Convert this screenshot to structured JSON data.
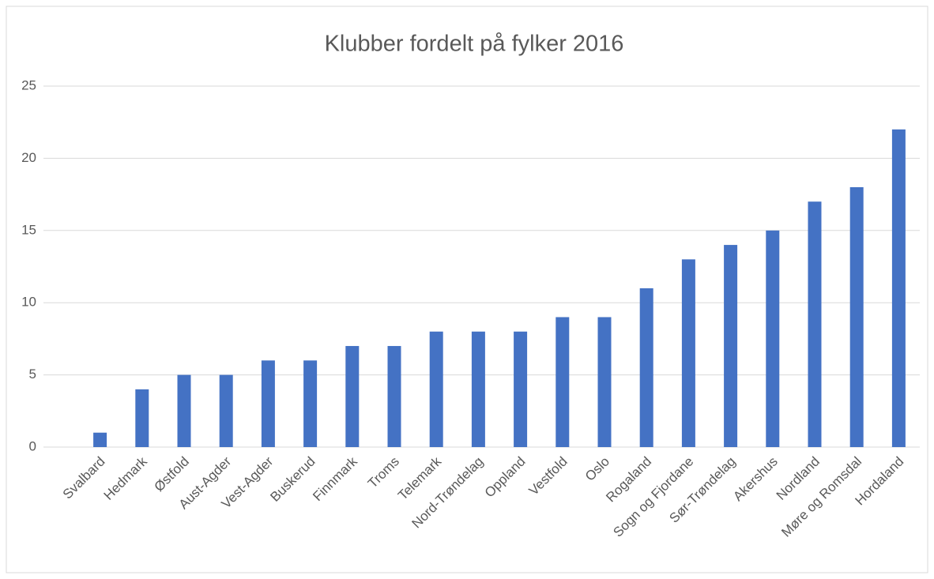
{
  "chart_data": {
    "type": "bar",
    "title": "Klubber fordelt på fylker 2016",
    "categories": [
      "Svalbard",
      "Hedmark",
      "Østfold",
      "Aust-Agder",
      "Vest-Agder",
      "Buskerud",
      "Finnmark",
      "Troms",
      "Telemark",
      "Nord-Trøndelag",
      "Oppland",
      "Vestfold",
      "Oslo",
      "Rogaland",
      "Sogn og Fjordane",
      "Sør-Trøndelag",
      "Akershus",
      "Nordland",
      "Møre og Romsdal",
      "Hordaland"
    ],
    "values": [
      1,
      4,
      5,
      5,
      6,
      6,
      7,
      7,
      8,
      8,
      8,
      9,
      9,
      11,
      13,
      14,
      15,
      17,
      18,
      22
    ],
    "color": "#4472c4",
    "ylim": [
      0,
      25
    ],
    "yticks": [
      0,
      5,
      10,
      15,
      20,
      25
    ],
    "grid": true
  }
}
